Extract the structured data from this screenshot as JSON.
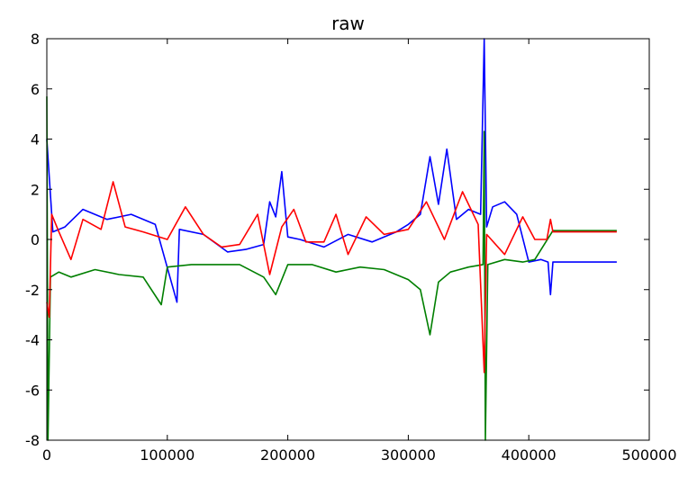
{
  "chart_data": {
    "type": "line",
    "title": "raw",
    "xlabel": "",
    "ylabel": "",
    "xlim": [
      0,
      500000
    ],
    "ylim": [
      -8,
      8
    ],
    "xticks": [
      0,
      100000,
      200000,
      300000,
      400000,
      500000
    ],
    "yticks": [
      -8,
      -6,
      -4,
      -2,
      0,
      2,
      4,
      6,
      8
    ],
    "grid": false,
    "legend": "none",
    "series": [
      {
        "color": "#0000ff",
        "points": [
          [
            0,
            4.0
          ],
          [
            2000,
            2.5
          ],
          [
            5000,
            0.3
          ],
          [
            15000,
            0.5
          ],
          [
            30000,
            1.2
          ],
          [
            50000,
            0.8
          ],
          [
            70000,
            1.0
          ],
          [
            90000,
            0.6
          ],
          [
            108000,
            -2.5
          ],
          [
            110000,
            0.4
          ],
          [
            130000,
            0.2
          ],
          [
            150000,
            -0.5
          ],
          [
            165000,
            -0.4
          ],
          [
            180000,
            -0.2
          ],
          [
            185000,
            1.5
          ],
          [
            190000,
            0.9
          ],
          [
            195000,
            2.7
          ],
          [
            200000,
            0.1
          ],
          [
            210000,
            0.0
          ],
          [
            230000,
            -0.3
          ],
          [
            250000,
            0.2
          ],
          [
            270000,
            -0.1
          ],
          [
            290000,
            0.3
          ],
          [
            300000,
            0.6
          ],
          [
            310000,
            1.0
          ],
          [
            318000,
            3.3
          ],
          [
            325000,
            1.4
          ],
          [
            332000,
            3.6
          ],
          [
            340000,
            0.8
          ],
          [
            350000,
            1.2
          ],
          [
            360000,
            1.0
          ],
          [
            363000,
            8.0
          ],
          [
            365000,
            0.5
          ],
          [
            370000,
            1.3
          ],
          [
            380000,
            1.5
          ],
          [
            390000,
            1.0
          ],
          [
            400000,
            -0.9
          ],
          [
            410000,
            -0.8
          ],
          [
            416000,
            -0.9
          ],
          [
            418000,
            -2.2
          ],
          [
            420000,
            -0.9
          ],
          [
            450000,
            -0.9
          ],
          [
            473000,
            -0.9
          ]
        ]
      },
      {
        "color": "#007f00",
        "points": [
          [
            0,
            5.7
          ],
          [
            1000,
            -8.0
          ],
          [
            3000,
            -1.5
          ],
          [
            10000,
            -1.3
          ],
          [
            20000,
            -1.5
          ],
          [
            40000,
            -1.2
          ],
          [
            60000,
            -1.4
          ],
          [
            80000,
            -1.5
          ],
          [
            95000,
            -2.6
          ],
          [
            100000,
            -1.1
          ],
          [
            120000,
            -1.0
          ],
          [
            140000,
            -1.0
          ],
          [
            160000,
            -1.0
          ],
          [
            180000,
            -1.5
          ],
          [
            190000,
            -2.2
          ],
          [
            200000,
            -1.0
          ],
          [
            220000,
            -1.0
          ],
          [
            240000,
            -1.3
          ],
          [
            260000,
            -1.1
          ],
          [
            280000,
            -1.2
          ],
          [
            300000,
            -1.6
          ],
          [
            310000,
            -2.0
          ],
          [
            318000,
            -3.8
          ],
          [
            325000,
            -1.7
          ],
          [
            335000,
            -1.3
          ],
          [
            350000,
            -1.1
          ],
          [
            362000,
            -1.0
          ],
          [
            363000,
            4.3
          ],
          [
            364000,
            -8.0
          ],
          [
            366000,
            -1.0
          ],
          [
            380000,
            -0.8
          ],
          [
            395000,
            -0.9
          ],
          [
            405000,
            -0.8
          ],
          [
            420000,
            0.35
          ],
          [
            450000,
            0.35
          ],
          [
            473000,
            0.35
          ]
        ]
      },
      {
        "color": "#ff0000",
        "points": [
          [
            0,
            -2.5
          ],
          [
            2000,
            -3.1
          ],
          [
            4000,
            1.0
          ],
          [
            10000,
            0.3
          ],
          [
            20000,
            -0.8
          ],
          [
            30000,
            0.8
          ],
          [
            45000,
            0.4
          ],
          [
            55000,
            2.3
          ],
          [
            65000,
            0.5
          ],
          [
            80000,
            0.3
          ],
          [
            100000,
            0.0
          ],
          [
            115000,
            1.3
          ],
          [
            130000,
            0.2
          ],
          [
            145000,
            -0.3
          ],
          [
            160000,
            -0.2
          ],
          [
            175000,
            1.0
          ],
          [
            185000,
            -1.4
          ],
          [
            195000,
            0.5
          ],
          [
            205000,
            1.2
          ],
          [
            215000,
            -0.1
          ],
          [
            230000,
            -0.1
          ],
          [
            240000,
            1.0
          ],
          [
            250000,
            -0.6
          ],
          [
            265000,
            0.9
          ],
          [
            280000,
            0.2
          ],
          [
            300000,
            0.4
          ],
          [
            315000,
            1.5
          ],
          [
            330000,
            0.0
          ],
          [
            345000,
            1.9
          ],
          [
            358000,
            0.6
          ],
          [
            363000,
            -5.3
          ],
          [
            365000,
            0.2
          ],
          [
            380000,
            -0.6
          ],
          [
            395000,
            0.9
          ],
          [
            405000,
            0.0
          ],
          [
            415000,
            0.0
          ],
          [
            418000,
            0.8
          ],
          [
            420000,
            0.3
          ],
          [
            450000,
            0.3
          ],
          [
            473000,
            0.3
          ]
        ]
      }
    ]
  }
}
